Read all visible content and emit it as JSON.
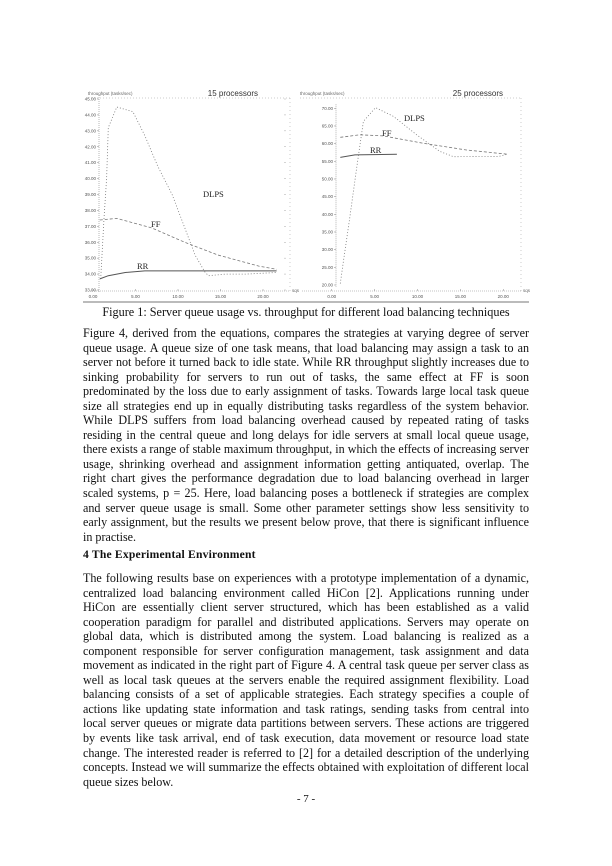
{
  "figure": {
    "caption": "Figure 1: Server queue usage vs. throughput for different load balancing techniques"
  },
  "chart_data": [
    {
      "type": "line",
      "title": "15 processors",
      "ylabel": "throughput (tasks/sec)",
      "xlabel": "sqs",
      "xlim": [
        0,
        22
      ],
      "ylim": [
        33,
        45
      ],
      "xticks": [
        "0.00",
        "5.00",
        "10.00",
        "15.00",
        "20.00"
      ],
      "yticks": [
        "45.00",
        "44.00",
        "43.00",
        "42.00",
        "41.00",
        "40.00",
        "39.00",
        "38.00",
        "37.00",
        "36.00",
        "35.00",
        "34.00",
        "33.00"
      ],
      "grid": false,
      "series": [
        {
          "name": "DLPS",
          "x": [
            0.9,
            1.3,
            1.6,
            1.8,
            2.8,
            4.7,
            6.1,
            7.6,
            9.3,
            10.8,
            12.0,
            13.2,
            13.6,
            15.6,
            18.0,
            21.6
          ],
          "y": [
            33.7,
            37.5,
            40.0,
            43.2,
            44.5,
            44.2,
            42.7,
            40.8,
            39.0,
            36.9,
            35.2,
            34.1,
            33.9,
            34.0,
            34.0,
            34.1
          ]
        },
        {
          "name": "FF",
          "x": [
            0.8,
            2.8,
            6.9,
            10.8,
            14.7,
            19.5,
            21.6
          ],
          "y": [
            37.4,
            37.5,
            36.9,
            36.0,
            35.2,
            34.5,
            34.3
          ]
        },
        {
          "name": "RR",
          "x": [
            0.8,
            1.8,
            3.8,
            6.1,
            13.6,
            21.6
          ],
          "y": [
            33.7,
            33.9,
            34.1,
            34.2,
            34.2,
            34.2
          ]
        }
      ]
    },
    {
      "type": "line",
      "title": "25 processors",
      "ylabel": "throughput (tasks/sec)",
      "xlabel": "sqs",
      "xlim": [
        0,
        22
      ],
      "ylim": [
        20,
        70
      ],
      "xticks": [
        "0.00",
        "5.00",
        "10.00",
        "15.00",
        "20.00"
      ],
      "yticks": [
        "70.00",
        "65.00",
        "60.00",
        "55.00",
        "50.00",
        "45.00",
        "40.00",
        "35.00",
        "30.00",
        "25.00",
        "20.00"
      ],
      "grid": false,
      "series": [
        {
          "name": "DLPS",
          "x": [
            1.0,
            1.3,
            2.1,
            2.9,
            3.7,
            5.1,
            7.2,
            9.9,
            12.6,
            14.2,
            19.5,
            20.5
          ],
          "y": [
            20.4,
            25.7,
            38.9,
            53.0,
            66.3,
            70.2,
            67.7,
            62.5,
            57.8,
            56.3,
            56.4,
            57.0
          ]
        },
        {
          "name": "FF",
          "x": [
            1.0,
            3.3,
            6.0,
            10.7,
            15.7,
            20.5
          ],
          "y": [
            61.8,
            62.5,
            62.2,
            60.1,
            58.2,
            57.0
          ]
        },
        {
          "name": "RR",
          "x": [
            1.0,
            2.7,
            7.6
          ],
          "y": [
            56.1,
            56.8,
            57.0
          ]
        }
      ]
    }
  ],
  "body": {
    "paragraph1": "Figure 4, derived from the equations, compares the strategies at varying degree of server queue usage. A queue size of one task means, that load balancing may assign a task to an server not before it turned back to idle state. While RR throughput slightly increases due to sinking probability for servers to run out of tasks, the same effect at FF is soon predominated by the loss due to early assignment of tasks. Towards large local task queue size all strategies end up in equally distributing tasks regardless of the system behavior. While DLPS suffers from load balancing overhead caused by repeated rating of tasks residing in the central queue and long delays for idle servers at small local queue usage, there exists a range of stable maximum throughput, in which the effects of increasing server usage, shrinking overhead and assignment information getting antiquated, overlap. The right chart gives the performance degradation due to load balancing overhead in larger scaled systems, p = 25. Here, load balancing poses a bottleneck if strategies are complex and server queue usage is small. Some other parameter settings show less sensitivity to early assignment, but the results we present below prove, that there is significant influence in practise.",
    "section_heading": "4 The Experimental Environment",
    "paragraph2": "The following results base on experiences with a prototype implementation of a dynamic, centralized load balancing environment called HiCon [2]. Applications running under HiCon are essentially client server structured, which has been established as a valid cooperation paradigm for parallel and distributed applications. Servers may operate on global data, which is distributed among the system. Load balancing is realized as a component responsible for server configuration management, task assignment and data movement as indicated in the right part of Figure 4. A central task queue per server class as well as local task queues at the servers enable the required assignment flexibility. Load balancing consists of a set of applicable strategies. Each strategy specifies a couple of actions like updating state information and task ratings, sending tasks from central into local server queues or migrate data partitions between servers. These actions are triggered by events like task arrival, end of task execution, data movement or resource load state change. The interested reader is referred to [2] for a detailed description of the underlying concepts. Instead we will summarize the effects obtained with exploitation of different local queue sizes below.",
    "page_number": "- 7 -"
  }
}
